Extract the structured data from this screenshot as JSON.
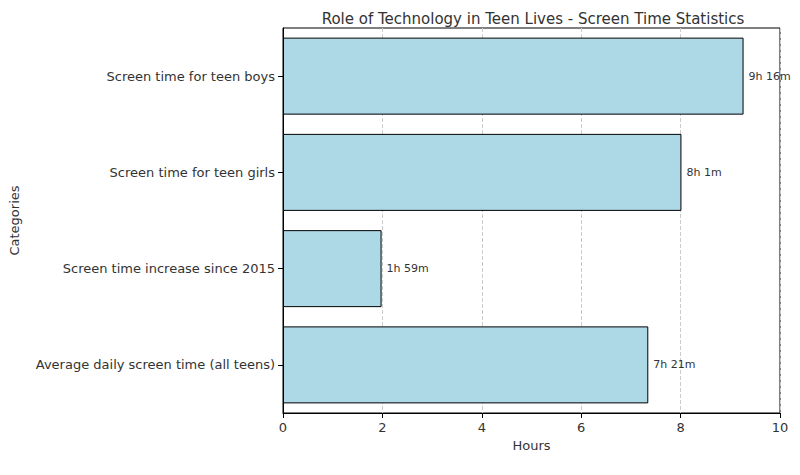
{
  "chart_data": {
    "type": "bar",
    "orientation": "horizontal",
    "title": "Role of Technology in Teen Lives - Screen Time Statistics",
    "x_label": "Hours",
    "y_label": "Categories",
    "categories": [
      "Screen time for teen boys",
      "Screen time for teen girls",
      "Screen time increase since 2015",
      "Average daily screen time (all teens)"
    ],
    "values": [
      9.2667,
      8.0167,
      1.9833,
      7.35
    ],
    "value_labels": [
      "9h 16m",
      "8h 1m",
      "1h 59m",
      "7h 21m"
    ],
    "data_labels": true,
    "color": "#add8e6",
    "xlim": [
      0,
      10
    ],
    "xticks": [
      0,
      2,
      4,
      6,
      8,
      10
    ],
    "grid": true
  }
}
